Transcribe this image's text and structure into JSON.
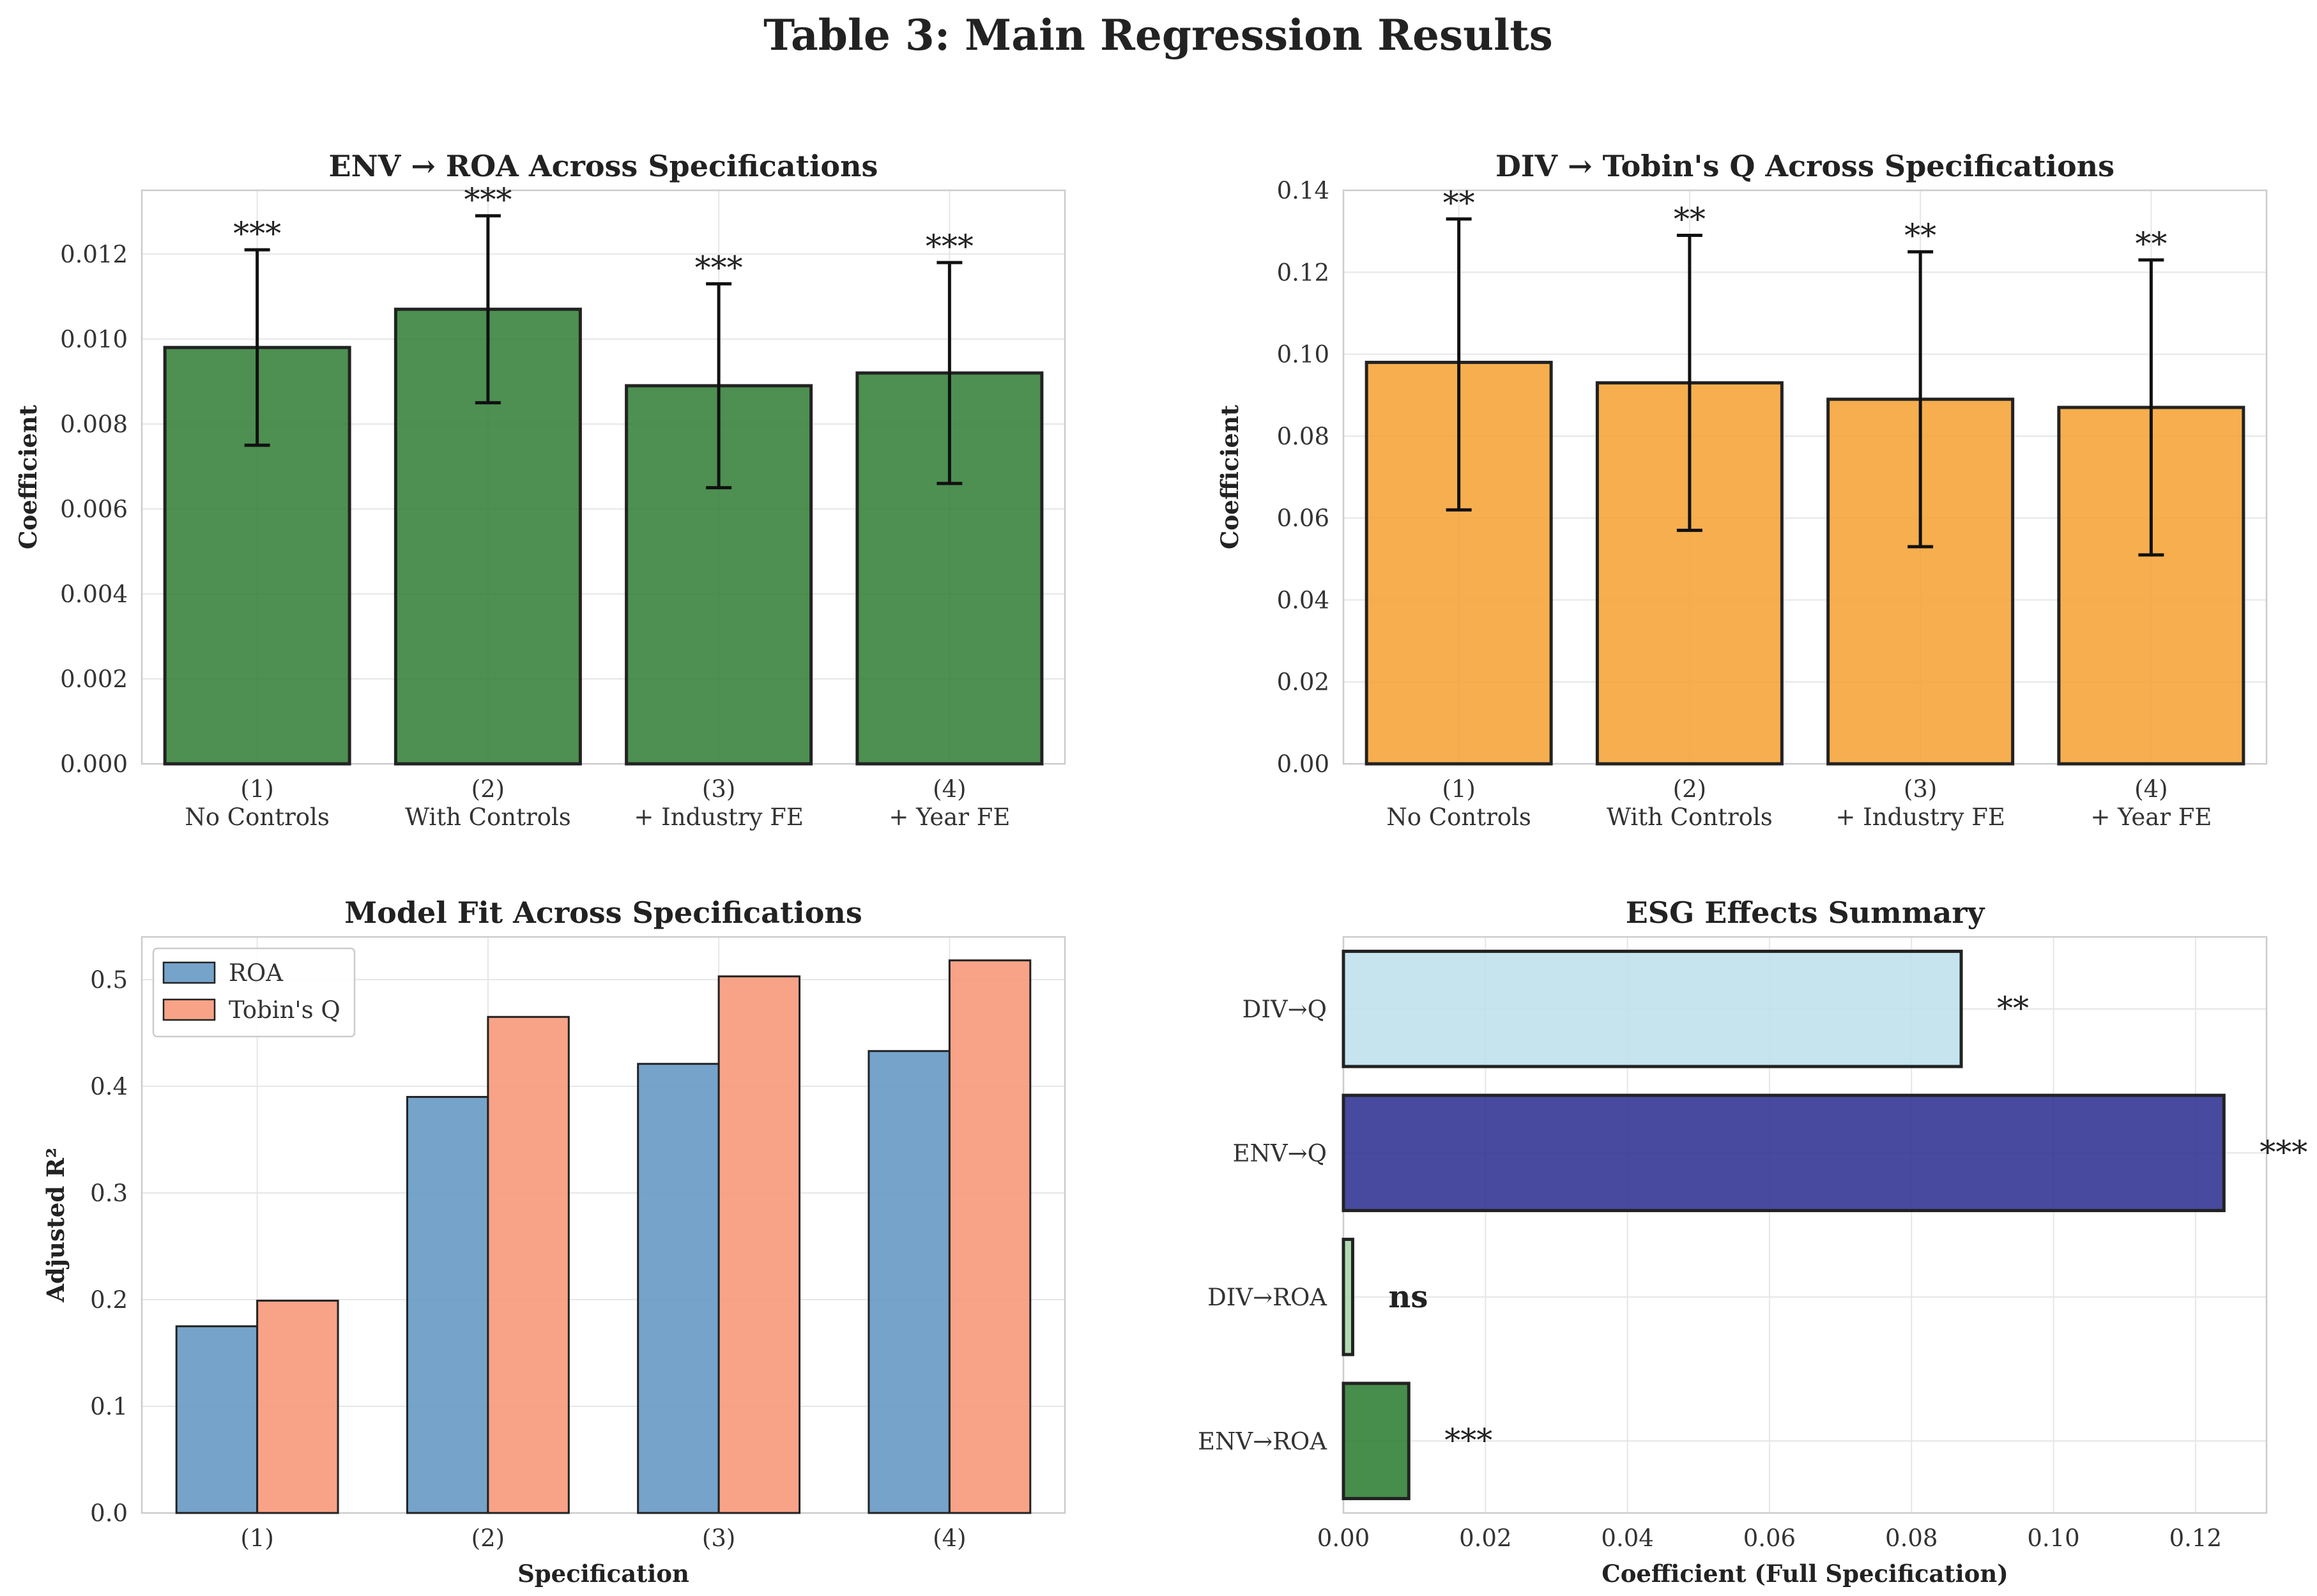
{
  "figure_title": "Table 3: Main Regression Results",
  "chart_data": [
    {
      "id": "env_roa",
      "type": "bar",
      "title": "ENV → ROA Across Specifications",
      "ylabel": "Coefficient",
      "xlabel": "",
      "ylim": [
        0,
        0.0135
      ],
      "yticks": [
        0.0,
        0.002,
        0.004,
        0.006,
        0.008,
        0.01,
        0.012
      ],
      "ytick_decimals": 3,
      "categories": [
        "(1)\nNo Controls",
        "(2)\nWith Controls",
        "(3)\n+ Industry FE",
        "(4)\n+ Year FE"
      ],
      "values": [
        0.0098,
        0.0107,
        0.0089,
        0.0092
      ],
      "error_low": [
        0.0075,
        0.0085,
        0.0065,
        0.0066
      ],
      "error_high": [
        0.0121,
        0.0129,
        0.0113,
        0.0118
      ],
      "significance": [
        "***",
        "***",
        "***",
        "***"
      ],
      "color": "#2e7d32"
    },
    {
      "id": "div_q",
      "type": "bar",
      "title": "DIV → Tobin's Q Across Specifications",
      "ylabel": "Coefficient",
      "xlabel": "",
      "ylim": [
        0,
        0.14
      ],
      "yticks": [
        0.0,
        0.02,
        0.04,
        0.06,
        0.08,
        0.1,
        0.12,
        0.14
      ],
      "ytick_decimals": 2,
      "categories": [
        "(1)\nNo Controls",
        "(2)\nWith Controls",
        "(3)\n+ Industry FE",
        "(4)\n+ Year FE"
      ],
      "values": [
        0.098,
        0.093,
        0.089,
        0.087
      ],
      "error_low": [
        0.062,
        0.057,
        0.053,
        0.051
      ],
      "error_high": [
        0.133,
        0.129,
        0.125,
        0.123
      ],
      "significance": [
        "**",
        "**",
        "**",
        "**"
      ],
      "color": "#f5a030"
    },
    {
      "id": "model_fit",
      "type": "bar",
      "title": "Model Fit Across Specifications",
      "ylabel": "Adjusted R²",
      "xlabel": "Specification",
      "ylim": [
        0,
        0.54
      ],
      "yticks": [
        0.0,
        0.1,
        0.2,
        0.3,
        0.4,
        0.5
      ],
      "ytick_decimals": 1,
      "categories": [
        "(1)",
        "(2)",
        "(3)",
        "(4)"
      ],
      "series": [
        {
          "name": "ROA",
          "values": [
            0.175,
            0.39,
            0.421,
            0.433
          ],
          "color": "#6699c4"
        },
        {
          "name": "Tobin's Q",
          "values": [
            0.199,
            0.465,
            0.503,
            0.518
          ],
          "color": "#f7997a"
        }
      ],
      "legend": "top-left"
    },
    {
      "id": "esg_summary",
      "type": "bar",
      "orientation": "horizontal",
      "title": "ESG Effects Summary",
      "xlabel": "Coefficient (Full Specification)",
      "ylabel": "",
      "xlim": [
        0,
        0.13
      ],
      "xticks": [
        0.0,
        0.02,
        0.04,
        0.06,
        0.08,
        0.1,
        0.12
      ],
      "xtick_decimals": 2,
      "categories": [
        "DIV→Q",
        "ENV→Q",
        "DIV→ROA",
        "ENV→ROA"
      ],
      "values": [
        0.087,
        0.124,
        0.0013,
        0.0092
      ],
      "significance": [
        "**",
        "***",
        "ns",
        "***"
      ],
      "colors": [
        "#bde0ec",
        "#2e3192",
        "#a5d6a7",
        "#2e7d32"
      ]
    }
  ]
}
